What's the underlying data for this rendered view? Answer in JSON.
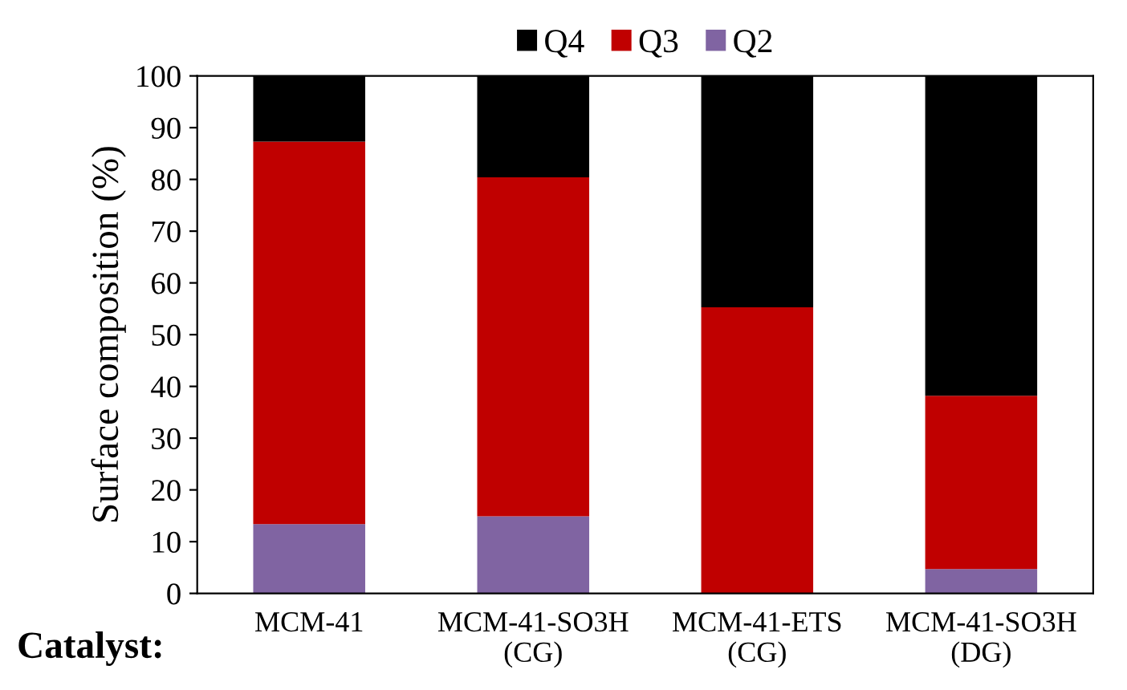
{
  "chart_data": {
    "type": "bar",
    "stacked": true,
    "categories": [
      "MCM-41",
      "MCM-41-SO3H\n(CG)",
      "MCM-41-ETS\n(CG)",
      "MCM-41-SO3H\n(DG)"
    ],
    "series": [
      {
        "name": "Q2",
        "color": "#8064a2",
        "values": [
          13.4,
          14.9,
          0,
          4.7
        ]
      },
      {
        "name": "Q3",
        "color": "#c00000",
        "values": [
          73.9,
          65.5,
          55.3,
          33.5
        ]
      },
      {
        "name": "Q4",
        "color": "#000000",
        "values": [
          12.7,
          19.6,
          44.7,
          61.8
        ]
      }
    ],
    "ylabel": "Surface composition (%)",
    "xlabel": "Catalyst:",
    "ylim": [
      0,
      100
    ],
    "yticks": [
      0,
      10,
      20,
      30,
      40,
      50,
      60,
      70,
      80,
      90,
      100
    ],
    "grid": false,
    "legend": "top"
  }
}
